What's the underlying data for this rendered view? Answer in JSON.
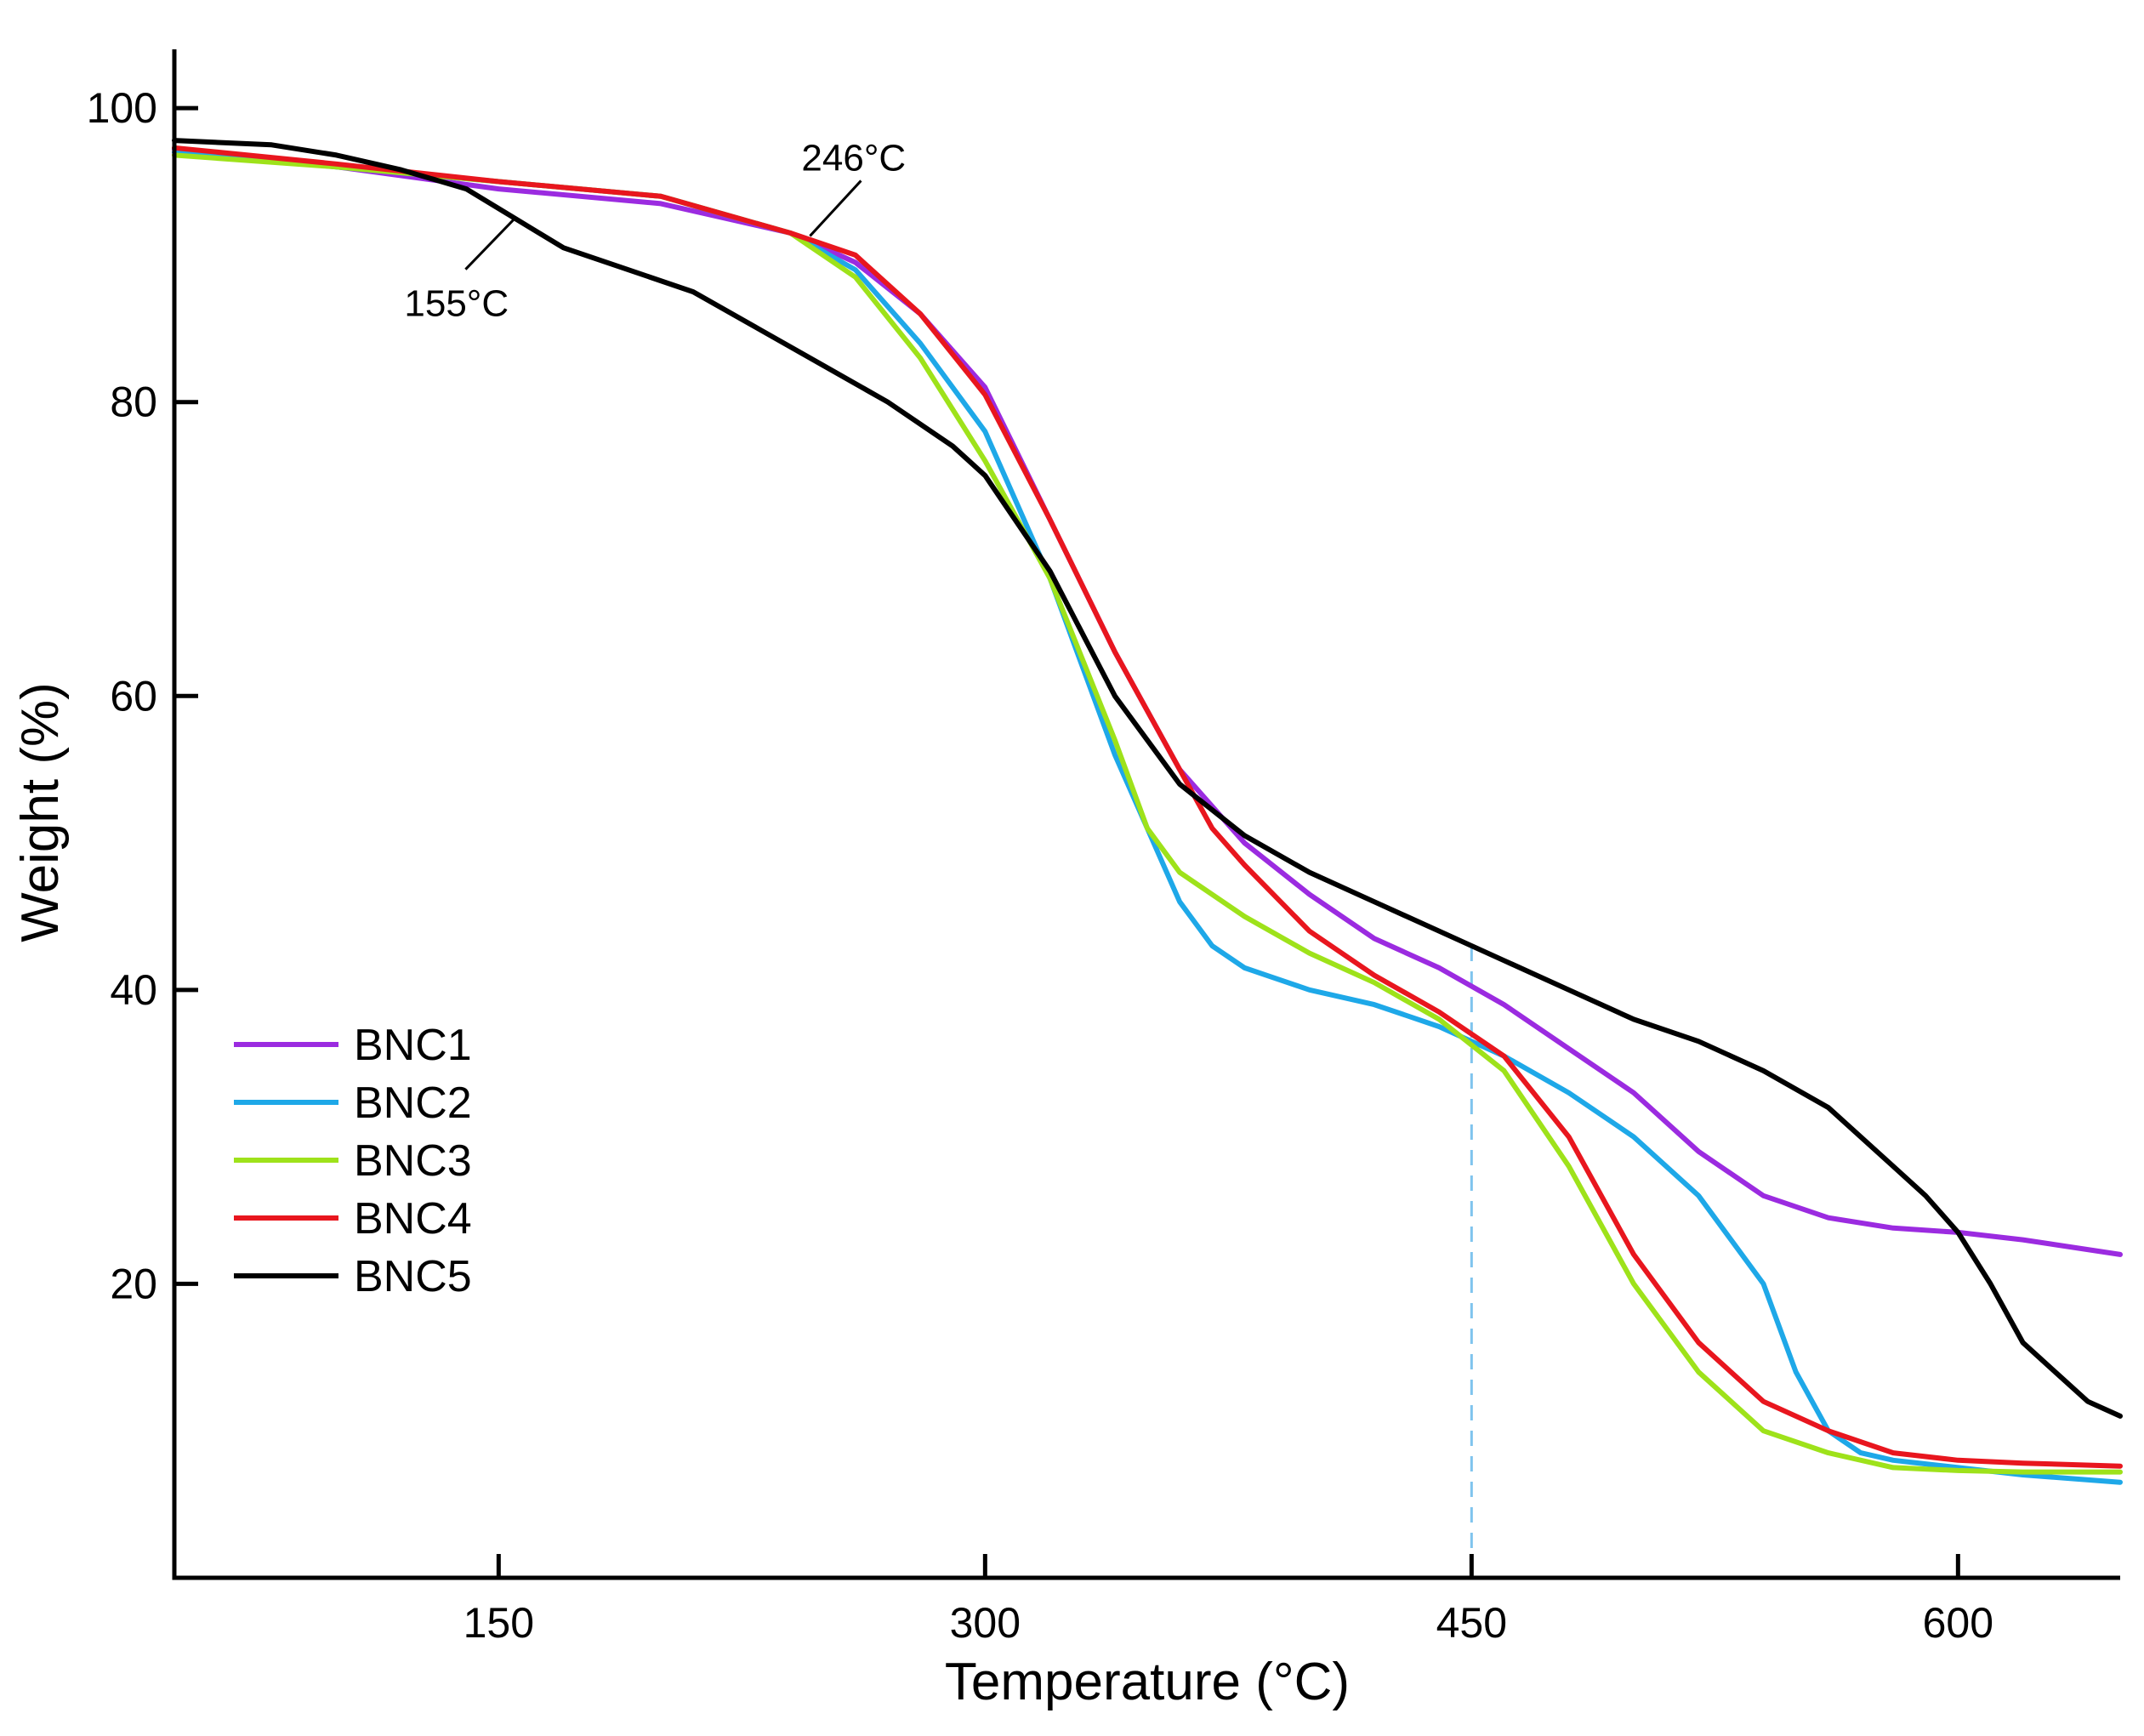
{
  "chart_data": {
    "type": "line",
    "title": "",
    "xlabel": "Temperature (°C)",
    "ylabel": "Weight (%)",
    "xlim": [
      50,
      650
    ],
    "ylim": [
      0,
      104
    ],
    "x_ticks": [
      150,
      300,
      450,
      600
    ],
    "y_ticks": [
      20,
      40,
      60,
      80,
      100
    ],
    "grid": false,
    "legend_position": "bottom-left",
    "series": [
      {
        "name": "BNC1",
        "color": "#9b2be0",
        "x": [
          50,
          100,
          150,
          200,
          240,
          260,
          280,
          300,
          320,
          340,
          360,
          380,
          400,
          420,
          440,
          460,
          480,
          500,
          520,
          540,
          560,
          580,
          600,
          620,
          650
        ],
        "y": [
          97.2,
          96,
          94.5,
          93.5,
          91.5,
          89.5,
          86,
          81,
          72,
          63,
          55,
          50,
          46.5,
          43.5,
          41.5,
          39,
          36,
          33,
          29,
          26,
          24.5,
          23.8,
          23.5,
          23,
          22
        ]
      },
      {
        "name": "BNC2",
        "color": "#1ea8e8",
        "x": [
          50,
          100,
          150,
          200,
          240,
          260,
          280,
          300,
          320,
          340,
          350,
          360,
          370,
          380,
          400,
          420,
          440,
          460,
          480,
          500,
          520,
          540,
          550,
          560,
          570,
          580,
          600,
          620,
          650
        ],
        "y": [
          97,
          96,
          95,
          94,
          91.5,
          89,
          84,
          78,
          68,
          56,
          51,
          46,
          43,
          41.5,
          40,
          39,
          37.5,
          35.5,
          33,
          30,
          26,
          20,
          14,
          10,
          8.5,
          8,
          7.5,
          7,
          6.5
        ]
      },
      {
        "name": "BNC3",
        "color": "#9ee21a",
        "x": [
          50,
          100,
          150,
          200,
          240,
          260,
          280,
          300,
          320,
          340,
          350,
          360,
          380,
          400,
          420,
          440,
          460,
          480,
          500,
          520,
          540,
          560,
          580,
          600,
          620,
          650
        ],
        "y": [
          96.8,
          96,
          95,
          94,
          91.5,
          88.5,
          83,
          76,
          68,
          57,
          51,
          48,
          45,
          42.5,
          40.5,
          38,
          34.5,
          28,
          20,
          14,
          10,
          8.5,
          7.5,
          7.3,
          7.2,
          7.2
        ]
      },
      {
        "name": "BNC4",
        "color": "#e8161e",
        "x": [
          50,
          100,
          150,
          200,
          240,
          260,
          280,
          300,
          320,
          340,
          360,
          370,
          380,
          400,
          420,
          440,
          460,
          480,
          500,
          520,
          540,
          560,
          580,
          600,
          620,
          650
        ],
        "y": [
          97.3,
          96.2,
          95,
          94,
          91.5,
          90,
          86,
          80.5,
          72,
          63,
          55,
          51,
          48.5,
          44,
          41,
          38.5,
          35.5,
          30,
          22,
          16,
          12,
          10,
          8.5,
          8,
          7.8,
          7.6
        ]
      },
      {
        "name": "BNC5",
        "color": "#000000",
        "x": [
          50,
          80,
          100,
          120,
          140,
          155,
          170,
          190,
          210,
          230,
          250,
          270,
          290,
          300,
          320,
          340,
          360,
          380,
          400,
          420,
          440,
          460,
          480,
          500,
          520,
          540,
          560,
          580,
          590,
          600,
          610,
          620,
          630,
          640,
          650
        ],
        "y": [
          97.8,
          97.5,
          96.8,
          95.8,
          94.5,
          92.5,
          90.5,
          89,
          87.5,
          85,
          82.5,
          80,
          77,
          75,
          68.5,
          60,
          54,
          50.5,
          48,
          46,
          44,
          42,
          40,
          38,
          36.5,
          34.5,
          32,
          28,
          26,
          23.5,
          20,
          16,
          14,
          12,
          11
        ]
      }
    ],
    "annotations": [
      {
        "label": "246°C",
        "x": 246,
        "y": 91.3
      },
      {
        "label": "155°C",
        "x": 155,
        "y": 92.5
      }
    ],
    "reference_lines": [
      {
        "orientation": "vertical",
        "x": 450,
        "style": "dashed",
        "color": "#7fc4ee"
      }
    ]
  }
}
